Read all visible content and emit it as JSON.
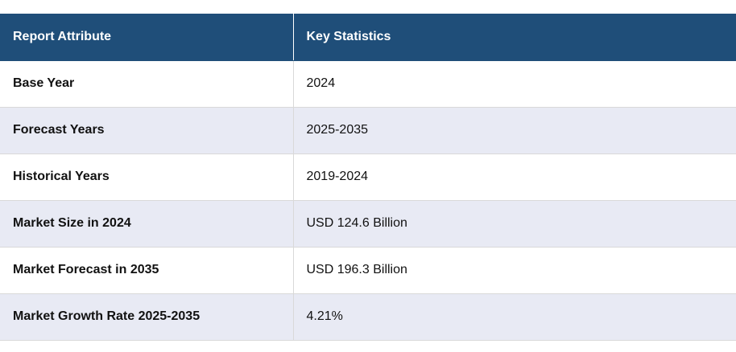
{
  "table": {
    "headers": [
      "Report Attribute",
      "Key Statistics"
    ],
    "rows": [
      {
        "attribute": "Base Year",
        "value": "2024"
      },
      {
        "attribute": "Forecast Years",
        "value": "2025-2035"
      },
      {
        "attribute": "Historical Years",
        "value": "2019-2024"
      },
      {
        "attribute": "Market Size in 2024",
        "value": "USD 124.6 Billion"
      },
      {
        "attribute": "Market Forecast in 2035",
        "value": "USD 196.3 Billion"
      },
      {
        "attribute": "Market Growth Rate 2025-2035",
        "value": "4.21%"
      }
    ]
  },
  "colors": {
    "header_bg": "#1f4e79",
    "header_text": "#ffffff",
    "alt_row_bg": "#e8eaf4",
    "row_bg": "#ffffff"
  }
}
